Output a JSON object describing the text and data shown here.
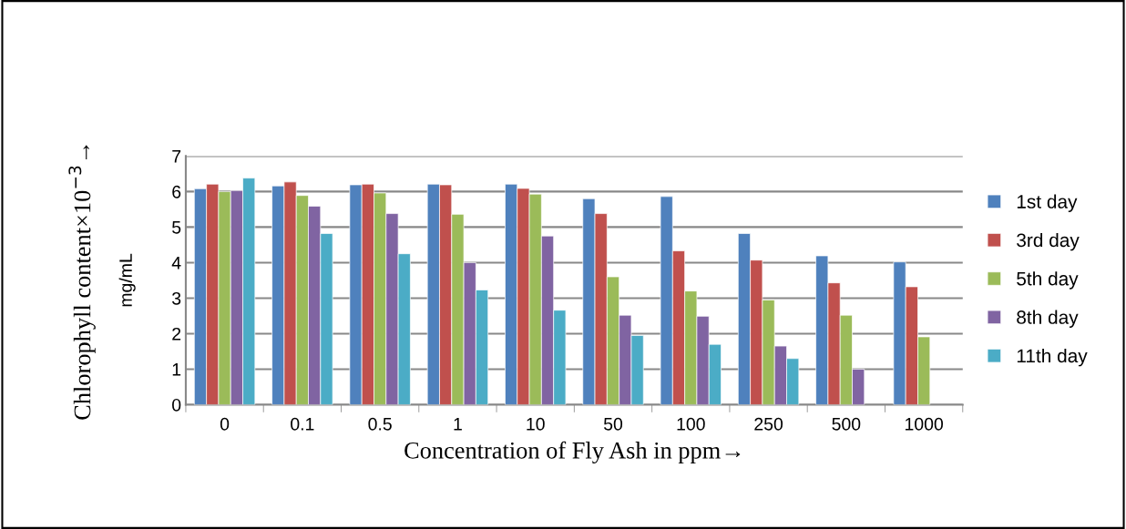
{
  "chart_data": {
    "type": "bar",
    "xlabel": "Concentration of Fly Ash in ppm→",
    "ylabel": "Chlorophyll content×10$^{−3}$→\nmg/mL",
    "categories": [
      "0",
      "0.1",
      "0.5",
      "1",
      "10",
      "50",
      "100",
      "250",
      "500",
      "1000"
    ],
    "series": [
      {
        "name": "1st day",
        "color": "#4f81bd",
        "values": [
          6.08,
          6.16,
          6.19,
          6.21,
          6.21,
          5.8,
          5.86,
          4.82,
          4.19,
          4.02
        ]
      },
      {
        "name": "3rd day",
        "color": "#c0504d",
        "values": [
          6.21,
          6.27,
          6.21,
          6.19,
          6.09,
          5.38,
          4.33,
          4.07,
          3.43,
          3.32
        ]
      },
      {
        "name": "5th day",
        "color": "#9bbb59",
        "values": [
          6.0,
          5.89,
          5.96,
          5.36,
          5.93,
          3.6,
          3.2,
          2.95,
          2.52,
          1.91
        ]
      },
      {
        "name": "8th day",
        "color": "#8064a2",
        "values": [
          6.03,
          5.59,
          5.38,
          4.0,
          4.75,
          2.52,
          2.49,
          1.65,
          1.0,
          null
        ]
      },
      {
        "name": "11th day",
        "color": "#4bacc6",
        "values": [
          6.38,
          4.82,
          4.25,
          3.23,
          2.66,
          1.95,
          1.7,
          1.3,
          null,
          null
        ]
      }
    ],
    "ylim": [
      0,
      7
    ],
    "yticks": [
      0,
      1,
      2,
      3,
      4,
      5,
      6,
      7
    ],
    "grid": "y",
    "legend": "right"
  }
}
